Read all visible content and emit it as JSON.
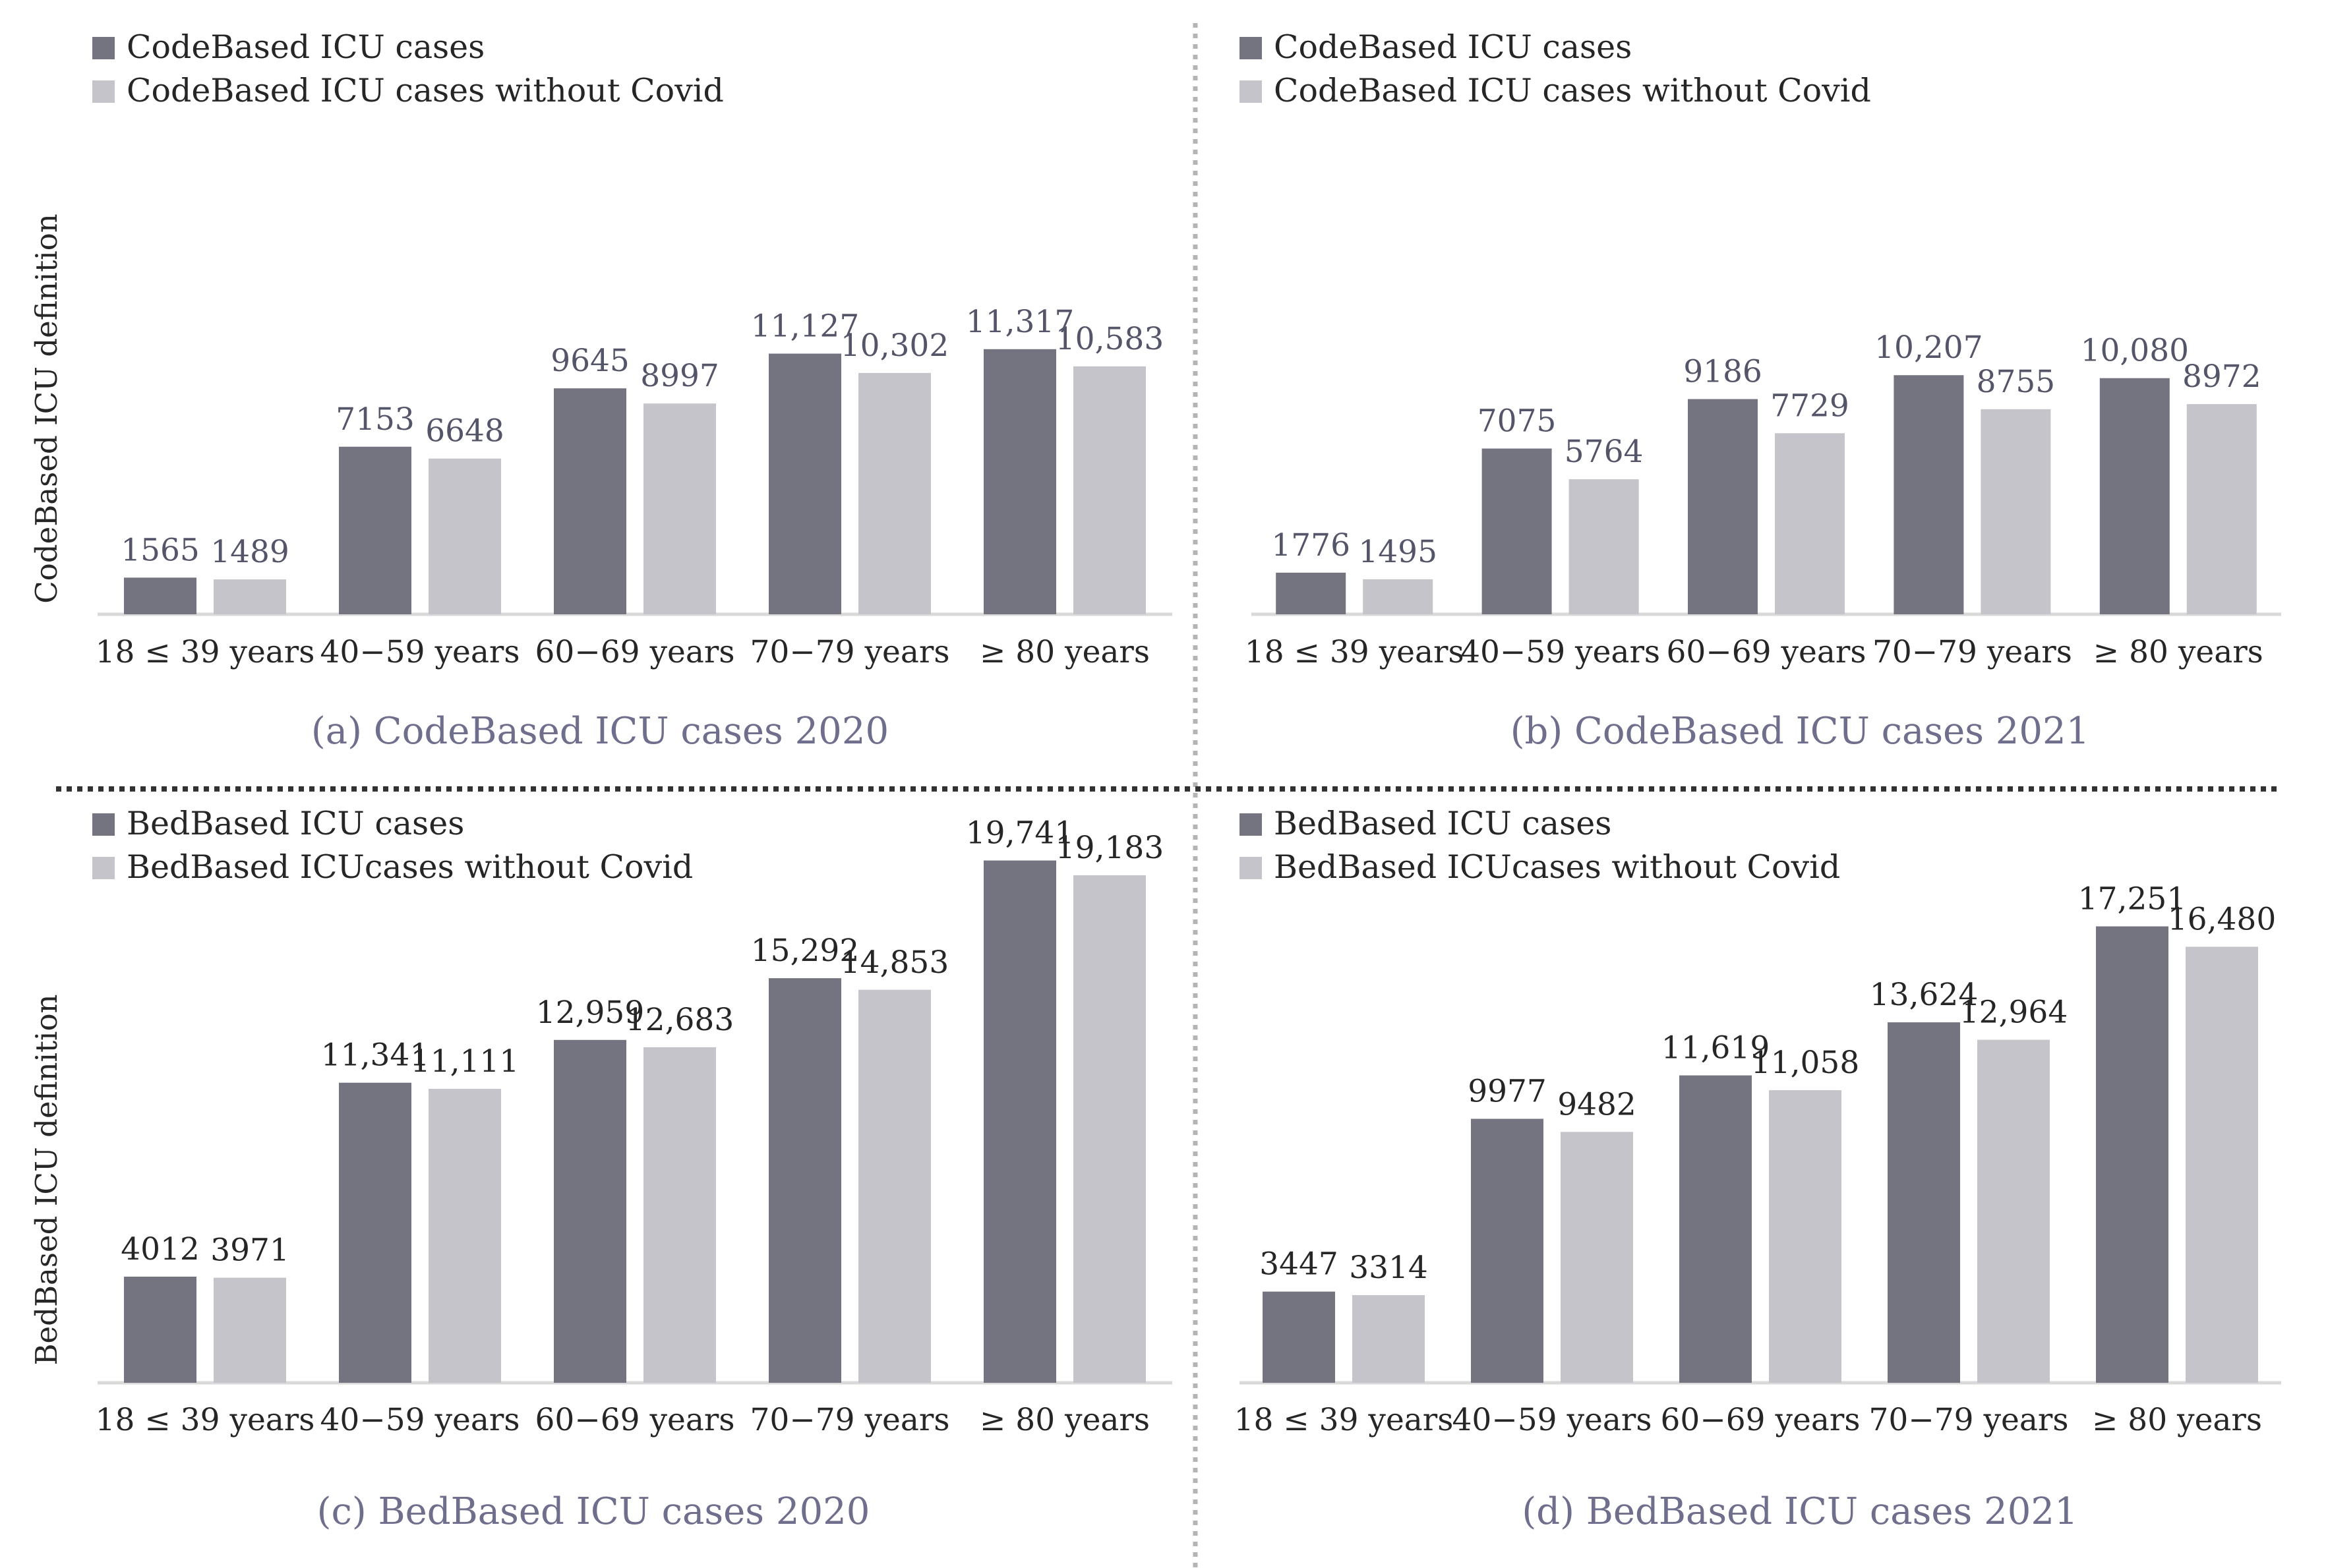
{
  "colors": {
    "dark": "#747480",
    "light": "#c4c4ca",
    "caption": "#6f6e8c",
    "valueLabelTop": "#55556a",
    "valueLabelBottom": "#262626",
    "axis": "#d9d9d9",
    "divider": "#b5b5b5"
  },
  "row_labels": {
    "top": "CodeBased ICU definition",
    "bottom": "BedBased ICU definition"
  },
  "chart_data": [
    {
      "type": "bar",
      "caption": "(a) CodeBased ICU cases 2020",
      "categories": [
        "18 ≤ 39 years",
        "40−59 years",
        "60−69 years",
        "70−79 years",
        "≥ 80 years"
      ],
      "series": [
        {
          "name": "CodeBased ICU cases",
          "values": [
            1565,
            7153,
            9645,
            11127,
            11317
          ],
          "labels": [
            "1565",
            "7153",
            "9645",
            "11,127",
            "11,317"
          ]
        },
        {
          "name": "CodeBased ICU cases without Covid",
          "values": [
            1489,
            6648,
            8997,
            10302,
            10583
          ],
          "labels": [
            "1489",
            "6648",
            "8997",
            "10,302",
            "10,583"
          ]
        }
      ],
      "ylim": [
        0,
        17500
      ],
      "ylabel": "CodeBased ICU definition",
      "grid": false
    },
    {
      "type": "bar",
      "caption": "(b) CodeBased ICU cases 2021",
      "categories": [
        "18 ≤ 39 years",
        "40−59 years",
        "60−69 years",
        "70−79 years",
        "≥ 80 years"
      ],
      "series": [
        {
          "name": "CodeBased ICU cases",
          "values": [
            1776,
            7075,
            9186,
            10207,
            10080
          ],
          "labels": [
            "1776",
            "7075",
            "9186",
            "10,207",
            "10,080"
          ]
        },
        {
          "name": "CodeBased ICU cases without Covid",
          "values": [
            1495,
            5764,
            7729,
            8755,
            8972
          ],
          "labels": [
            "1495",
            "5764",
            "7729",
            "8755",
            "8972"
          ]
        }
      ],
      "ylim": [
        0,
        17500
      ],
      "grid": false
    },
    {
      "type": "bar",
      "caption": "(c) BedBased ICU cases 2020",
      "categories": [
        "18 ≤ 39 years",
        "40−59 years",
        "60−69 years",
        "70−79 years",
        "≥ 80 years"
      ],
      "series": [
        {
          "name": "BedBased ICU cases",
          "values": [
            4012,
            11341,
            12959,
            15292,
            19741
          ],
          "labels": [
            "4012",
            "11,341",
            "12,959",
            "15,292",
            "19,741"
          ]
        },
        {
          "name": "BedBased ICUcases without Covid",
          "values": [
            3971,
            11111,
            12683,
            14853,
            19183
          ],
          "labels": [
            "3971",
            "11,111",
            "12,683",
            "14,853",
            "19,183"
          ]
        }
      ],
      "ylim": [
        0,
        21000
      ],
      "ylabel": "BedBased ICU definition",
      "grid": false
    },
    {
      "type": "bar",
      "caption": "(d) BedBased ICU cases 2021",
      "categories": [
        "18 ≤ 39 years",
        "40−59 years",
        "60−69 years",
        "70−79 years",
        "≥ 80 years"
      ],
      "series": [
        {
          "name": "BedBased ICU cases",
          "values": [
            3447,
            9977,
            11619,
            13624,
            17251
          ],
          "labels": [
            "3447",
            "9977",
            "11,619",
            "13,624",
            "17,251"
          ]
        },
        {
          "name": "BedBased ICUcases without Covid",
          "values": [
            3314,
            9482,
            11058,
            12964,
            16480
          ],
          "labels": [
            "3314",
            "9482",
            "11,058",
            "12,964",
            "16,480"
          ]
        }
      ],
      "ylim": [
        0,
        21000
      ],
      "grid": false
    }
  ]
}
